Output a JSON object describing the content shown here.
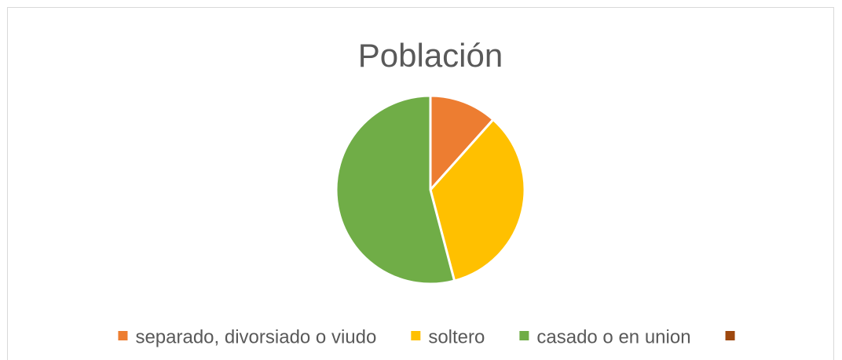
{
  "chart_data": {
    "type": "pie",
    "title": "Población",
    "categories": [
      "separado, divorsiado o viudo",
      "soltero",
      "casado o en union",
      null
    ],
    "values": [
      11.6,
      34.3,
      54.1,
      0
    ],
    "colors": [
      "#ed7d31",
      "#ffc000",
      "#70ad47",
      "#9e480e"
    ],
    "legend": "bottom"
  }
}
